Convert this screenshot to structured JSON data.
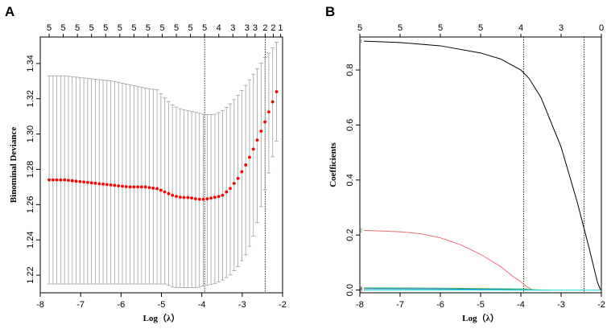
{
  "chart_data": [
    {
      "panel": "A",
      "type": "scatter",
      "title": "",
      "xlabel": "Log（λ）",
      "ylabel": "Binominal Deviance",
      "xlim": [
        -8.0,
        -2.0
      ],
      "ylim": [
        1.21,
        1.355
      ],
      "xticks": [
        -8,
        -7,
        -6,
        -5,
        -4,
        -3,
        -2
      ],
      "yticks": [
        1.22,
        1.24,
        1.26,
        1.28,
        1.3,
        1.32,
        1.34
      ],
      "top_counts": [
        "5",
        "5",
        "5",
        "5",
        "5",
        "5",
        "5",
        "5",
        "5",
        "5",
        "5",
        "5",
        "4",
        "3",
        "3",
        "3",
        "2",
        "2",
        "1"
      ],
      "top_count_x": [
        -7.78,
        -7.43,
        -7.08,
        -6.73,
        -6.38,
        -6.03,
        -5.68,
        -5.33,
        -4.98,
        -4.63,
        -4.28,
        -3.93,
        -3.58,
        -3.23,
        -2.88,
        -2.68,
        -2.43,
        -2.23,
        -2.05
      ],
      "vlines": [
        -3.93,
        -2.43
      ],
      "series": [
        {
          "name": "cv mean",
          "color": "#ff0000",
          "x": [
            -7.78,
            -7.4,
            -7.0,
            -6.6,
            -6.2,
            -5.8,
            -5.4,
            -5.1,
            -4.9,
            -4.7,
            -4.5,
            -4.3,
            -4.1,
            -3.93,
            -3.7,
            -3.5,
            -3.3,
            -3.1,
            -2.9,
            -2.75,
            -2.6,
            -2.45,
            -2.3,
            -2.15
          ],
          "y": [
            1.274,
            1.274,
            1.273,
            1.272,
            1.271,
            1.27,
            1.27,
            1.269,
            1.267,
            1.265,
            1.264,
            1.264,
            1.263,
            1.263,
            1.264,
            1.265,
            1.269,
            1.275,
            1.283,
            1.29,
            1.298,
            1.306,
            1.315,
            1.324
          ]
        },
        {
          "name": "upper",
          "color": "#a0a0a0",
          "x": [
            -7.78,
            -7.4,
            -7.0,
            -6.6,
            -6.2,
            -5.8,
            -5.4,
            -5.1,
            -4.9,
            -4.7,
            -4.5,
            -4.3,
            -4.1,
            -3.93,
            -3.7,
            -3.5,
            -3.3,
            -3.1,
            -2.9,
            -2.75,
            -2.6,
            -2.45,
            -2.3,
            -2.15
          ],
          "y": [
            1.333,
            1.333,
            1.332,
            1.331,
            1.33,
            1.328,
            1.326,
            1.325,
            1.32,
            1.316,
            1.314,
            1.313,
            1.312,
            1.311,
            1.311,
            1.313,
            1.317,
            1.322,
            1.328,
            1.333,
            1.338,
            1.343,
            1.347,
            1.352
          ]
        },
        {
          "name": "lower",
          "color": "#a0a0a0",
          "x": [
            -7.78,
            -7.4,
            -7.0,
            -6.6,
            -6.2,
            -5.8,
            -5.4,
            -5.1,
            -4.9,
            -4.7,
            -4.5,
            -4.3,
            -4.1,
            -3.93,
            -3.7,
            -3.5,
            -3.3,
            -3.1,
            -2.9,
            -2.75,
            -2.6,
            -2.45,
            -2.3,
            -2.15
          ],
          "y": [
            1.215,
            1.215,
            1.215,
            1.215,
            1.215,
            1.215,
            1.215,
            1.215,
            1.215,
            1.213,
            1.213,
            1.213,
            1.213,
            1.214,
            1.215,
            1.217,
            1.22,
            1.225,
            1.232,
            1.24,
            1.252,
            1.267,
            1.282,
            1.296
          ]
        }
      ]
    },
    {
      "panel": "B",
      "type": "line",
      "title": "",
      "xlabel": "Log（λ）",
      "ylabel": "Coefficients",
      "xlim": [
        -8.0,
        -2.0
      ],
      "ylim": [
        -0.01,
        0.92
      ],
      "xticks": [
        -8,
        -7,
        -6,
        -5,
        -4,
        -3,
        -2
      ],
      "yticks": [
        0.0,
        0.2,
        0.4,
        0.6,
        0.8
      ],
      "top_counts": [
        "5",
        "5",
        "5",
        "5",
        "4",
        "3",
        "0"
      ],
      "top_count_x": [
        -8.0,
        -7.0,
        -6.0,
        -5.0,
        -4.0,
        -3.0,
        -2.0
      ],
      "vlines": [
        -3.93,
        -2.43
      ],
      "series": [
        {
          "name": "1",
          "color": "#000000",
          "x": [
            -7.9,
            -7.0,
            -6.0,
            -5.0,
            -4.5,
            -4.0,
            -3.8,
            -3.5,
            -3.0,
            -2.6,
            -2.3,
            -2.1,
            -2.02
          ],
          "y": [
            0.905,
            0.9,
            0.888,
            0.862,
            0.84,
            0.8,
            0.77,
            0.7,
            0.52,
            0.32,
            0.15,
            0.03,
            0.0
          ]
        },
        {
          "name": "2",
          "color": "#ee6f7b",
          "x": [
            -7.9,
            -7.0,
            -6.5,
            -6.0,
            -5.5,
            -5.0,
            -4.5,
            -4.2,
            -4.0,
            -3.85,
            -3.7
          ],
          "y": [
            0.217,
            0.212,
            0.205,
            0.19,
            0.165,
            0.13,
            0.085,
            0.05,
            0.03,
            0.012,
            0.0
          ]
        },
        {
          "name": "3",
          "color": "#2dbd5a",
          "x": [
            -7.9,
            -6.0,
            -4.0,
            -3.6,
            -3.3
          ],
          "y": [
            0.008,
            0.007,
            0.004,
            0.001,
            0.0
          ]
        },
        {
          "name": "4",
          "color": "#1f77d0",
          "x": [
            -7.9,
            -6.0,
            -4.5,
            -4.0,
            -3.6
          ],
          "y": [
            0.005,
            0.004,
            0.002,
            0.001,
            0.0
          ]
        },
        {
          "name": "5",
          "color": "#29d6d6",
          "x": [
            -7.9,
            -2.02
          ],
          "y": [
            0.0,
            0.0
          ]
        }
      ]
    }
  ]
}
